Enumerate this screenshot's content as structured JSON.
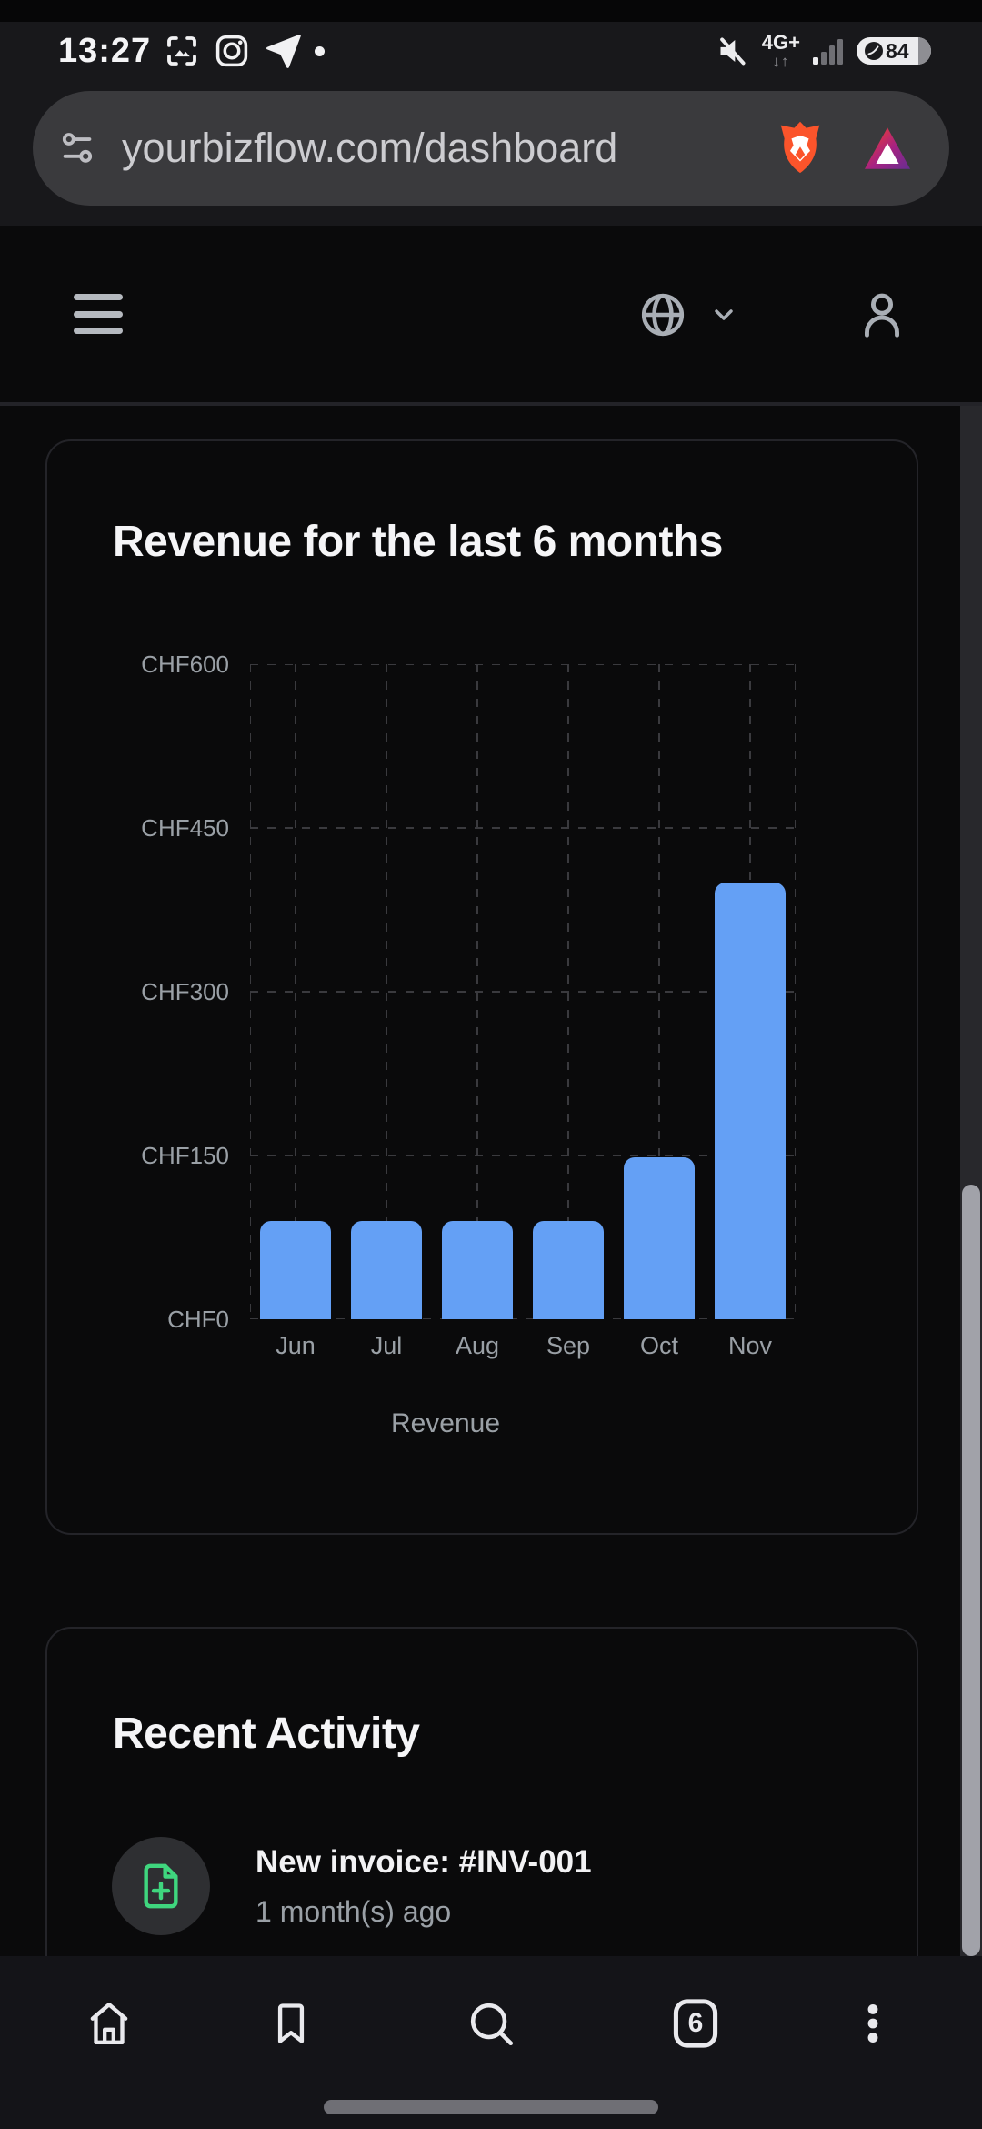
{
  "status_bar": {
    "time": "13:27",
    "network_label": "4G+",
    "network_arrows": "↓↑",
    "battery_percent": "84"
  },
  "browser": {
    "url": "yourbizflow.com/dashboard"
  },
  "chart_card": {
    "title": "Revenue for the last 6 months"
  },
  "chart_data": {
    "type": "bar",
    "title": "Revenue for the last 6 months",
    "categories": [
      "Jun",
      "Jul",
      "Aug",
      "Sep",
      "Oct",
      "Nov"
    ],
    "series": [
      {
        "name": "Revenue",
        "values": [
          90,
          90,
          90,
          90,
          148,
          400
        ]
      }
    ],
    "xlabel": "Revenue",
    "ylabel": "",
    "ylim": [
      0,
      600
    ],
    "y_ticks": [
      {
        "label": "CHF600",
        "value": 600
      },
      {
        "label": "CHF450",
        "value": 450
      },
      {
        "label": "CHF300",
        "value": 300
      },
      {
        "label": "CHF150",
        "value": 150
      },
      {
        "label": "CHF0",
        "value": 0
      }
    ],
    "currency_prefix": "CHF",
    "grid": "dashed",
    "bar_color": "#64a0f5",
    "legend_position": "none"
  },
  "activity_card": {
    "title": "Recent Activity",
    "items": [
      {
        "icon": "file-plus-icon",
        "title": "New invoice: #INV-001",
        "subtitle": "1 month(s) ago"
      }
    ]
  },
  "bottom_nav": {
    "tab_count": "6"
  },
  "colors": {
    "accent_blue": "#64a0f5",
    "accent_green": "#3fd67e",
    "brave_orange": "#fb542b",
    "grid_line": "#3a3a3e",
    "text_gray": "#9aa0a6"
  }
}
